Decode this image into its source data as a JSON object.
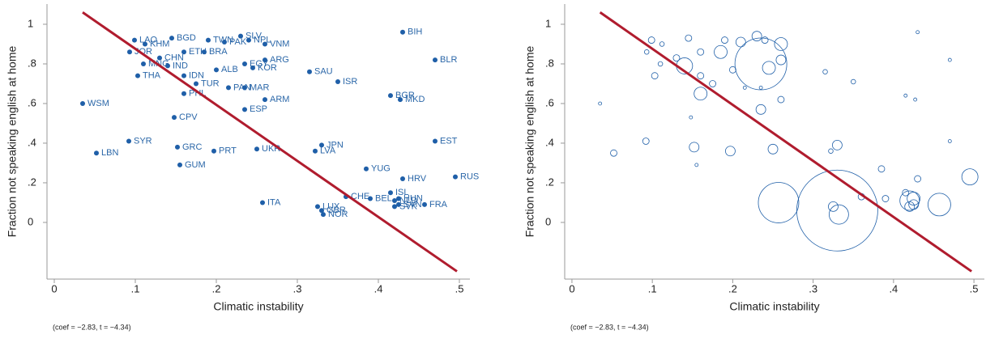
{
  "chart_data": [
    {
      "type": "scatter",
      "ylabel": "Fraction not speaking english at home",
      "xlabel": "Climatic instability",
      "note": "(coef = −2.83, t = −4.34)",
      "xlim": [
        -0.009,
        0.513
      ],
      "ylim": [
        -0.286,
        1.102
      ],
      "xticks": [
        0,
        {
          "value": 0.1,
          "label": ".1"
        },
        {
          "value": 0.2,
          "label": ".2"
        },
        {
          "value": 0.3,
          "label": ".3"
        },
        {
          "value": 0.4,
          "label": ".4"
        },
        {
          "value": 0.5,
          "label": ".5"
        }
      ],
      "yticks": [
        0,
        {
          "value": 0.2,
          "label": ".2"
        },
        {
          "value": 0.4,
          "label": ".4"
        },
        {
          "value": 0.6,
          "label": ".6"
        },
        {
          "value": 0.8,
          "label": ".8"
        },
        1
      ],
      "color": "#1f5fa8",
      "labels": [
        "WSM",
        "LBN",
        "SYR",
        "LAO",
        "JOR",
        "THA",
        "KHM",
        "MNG",
        "IND",
        "CHN",
        "BGD",
        "PHL",
        "GRC",
        "GUM",
        "CPV",
        "IDN",
        "TUR",
        "TWN",
        "ETH",
        "BRA",
        "SLV",
        "PAK",
        "ALB",
        "PRT",
        "PAN",
        "MAR",
        "ARM",
        "ESP",
        "UKR",
        "VNM",
        "NPL",
        "KOR",
        "ARG",
        "EGY",
        "ITA",
        "SAU",
        "ISR",
        "JPN",
        "LVA",
        "CHE",
        "BEL",
        "LUX",
        "NOR",
        "GBR",
        "YUG",
        "BIH",
        "BGR",
        "MKD",
        "BLR",
        "EST",
        "HRV",
        "RUS",
        "ISL",
        "HUN",
        "SVN",
        "SVK",
        "FRA",
        "NLD"
      ],
      "x": [
        0.035,
        0.052,
        0.092,
        0.099,
        0.093,
        0.103,
        0.112,
        0.11,
        0.14,
        0.13,
        0.145,
        0.16,
        0.152,
        0.155,
        0.148,
        0.16,
        0.175,
        0.19,
        0.16,
        0.185,
        0.23,
        0.21,
        0.2,
        0.197,
        0.215,
        0.235,
        0.26,
        0.235,
        0.25,
        0.26,
        0.24,
        0.245,
        0.26,
        0.235,
        0.257,
        0.315,
        0.35,
        0.33,
        0.322,
        0.36,
        0.39,
        0.325,
        0.332,
        0.33,
        0.385,
        0.43,
        0.415,
        0.427,
        0.47,
        0.47,
        0.43,
        0.495,
        0.415,
        0.425,
        0.425,
        0.42,
        0.457,
        0.42
      ],
      "values": [
        0.6,
        0.35,
        0.41,
        0.92,
        0.86,
        0.74,
        0.9,
        0.8,
        0.79,
        0.83,
        0.93,
        0.65,
        0.38,
        0.29,
        0.53,
        0.74,
        0.7,
        0.92,
        0.86,
        0.86,
        0.94,
        0.91,
        0.77,
        0.36,
        0.68,
        0.68,
        0.62,
        0.57,
        0.37,
        0.9,
        0.92,
        0.78,
        0.82,
        0.8,
        0.1,
        0.76,
        0.71,
        0.39,
        0.36,
        0.13,
        0.12,
        0.08,
        0.04,
        0.06,
        0.27,
        0.96,
        0.64,
        0.62,
        0.82,
        0.41,
        0.22,
        0.23,
        0.15,
        0.12,
        0.09,
        0.08,
        0.09,
        0.11
      ],
      "fit": {
        "color": "#b01c2e",
        "x": [
          0.035,
          0.497
        ],
        "values": [
          1.06,
          -0.247
        ]
      }
    },
    {
      "type": "bubble",
      "ylabel": "Fraction not speaking english at home",
      "xlabel": "Climatic instability",
      "note": "(coef = −2.83, t = −4.34)",
      "xlim": [
        -0.009,
        0.513
      ],
      "ylim": [
        -0.286,
        1.102
      ],
      "xticks": [
        0,
        {
          "value": 0.1,
          "label": ".1"
        },
        {
          "value": 0.2,
          "label": ".2"
        },
        {
          "value": 0.3,
          "label": ".3"
        },
        {
          "value": 0.4,
          "label": ".4"
        },
        {
          "value": 0.5,
          "label": ".5"
        }
      ],
      "yticks": [
        0,
        {
          "value": 0.2,
          "label": ".2"
        },
        {
          "value": 0.4,
          "label": ".4"
        },
        {
          "value": 0.6,
          "label": ".6"
        },
        {
          "value": 0.8,
          "label": ".8"
        },
        1
      ],
      "color": "#1f5fa8",
      "x": [
        0.035,
        0.052,
        0.092,
        0.099,
        0.093,
        0.103,
        0.112,
        0.11,
        0.14,
        0.13,
        0.145,
        0.16,
        0.152,
        0.155,
        0.148,
        0.16,
        0.175,
        0.19,
        0.16,
        0.185,
        0.23,
        0.21,
        0.2,
        0.197,
        0.215,
        0.235,
        0.26,
        0.235,
        0.25,
        0.26,
        0.24,
        0.245,
        0.26,
        0.235,
        0.257,
        0.315,
        0.35,
        0.33,
        0.322,
        0.36,
        0.39,
        0.325,
        0.332,
        0.33,
        0.385,
        0.43,
        0.415,
        0.427,
        0.47,
        0.47,
        0.43,
        0.495,
        0.415,
        0.425,
        0.425,
        0.42,
        0.457,
        0.42
      ],
      "values": [
        0.6,
        0.35,
        0.41,
        0.92,
        0.86,
        0.74,
        0.9,
        0.8,
        0.79,
        0.83,
        0.93,
        0.65,
        0.38,
        0.29,
        0.53,
        0.74,
        0.7,
        0.92,
        0.86,
        0.86,
        0.94,
        0.91,
        0.77,
        0.36,
        0.68,
        0.68,
        0.62,
        0.57,
        0.37,
        0.9,
        0.92,
        0.78,
        0.82,
        0.8,
        0.1,
        0.76,
        0.71,
        0.39,
        0.36,
        0.13,
        0.12,
        0.08,
        0.04,
        0.06,
        0.27,
        0.96,
        0.64,
        0.62,
        0.82,
        0.41,
        0.22,
        0.23,
        0.15,
        0.12,
        0.09,
        0.08,
        0.09,
        0.11
      ],
      "sizes": [
        1,
        4,
        4,
        4,
        2,
        4,
        2,
        2,
        25,
        4,
        4,
        16,
        9,
        1,
        1,
        4,
        4,
        4,
        4,
        16,
        9,
        9,
        4,
        9,
        1,
        1,
        4,
        9,
        9,
        16,
        4,
        16,
        9,
        256,
        156,
        2,
        2,
        9,
        2,
        4,
        4,
        9,
        36,
        625,
        4,
        1,
        1,
        1,
        1,
        1,
        4,
        25,
        4,
        16,
        9,
        9,
        49,
        36
      ],
      "fit": {
        "color": "#b01c2e",
        "x": [
          0.035,
          0.497
        ],
        "values": [
          1.06,
          -0.247
        ]
      }
    }
  ]
}
